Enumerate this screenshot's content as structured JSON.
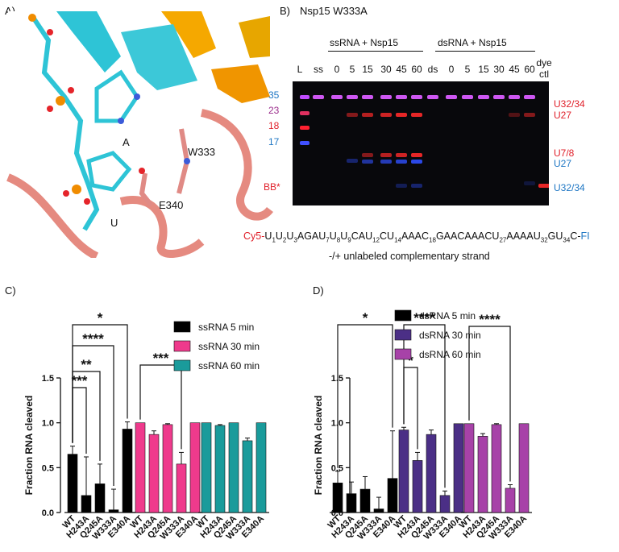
{
  "panels": {
    "a": "A)",
    "b": "B)",
    "b_title": "Nsp15 W333A",
    "c": "C)",
    "d": "D)"
  },
  "structure": {
    "labels": [
      "A",
      "W333",
      "E340",
      "U"
    ]
  },
  "gel": {
    "group_ss": "ssRNA + Nsp15",
    "group_ds": "dsRNA + Nsp15",
    "lanes": [
      "L",
      "ss",
      "0",
      "5",
      "15",
      "30",
      "45",
      "60",
      "ds",
      "0",
      "5",
      "15",
      "30",
      "45",
      "60",
      "dye ctl"
    ],
    "left_markers": [
      {
        "text": "35",
        "color": "#1f77c4"
      },
      {
        "text": "23",
        "color": "#9b2d8c"
      },
      {
        "text": "18",
        "color": "#e0202a"
      },
      {
        "text": "17",
        "color": "#1f77c4"
      },
      {
        "text": "BB*",
        "color": "#e0202a"
      }
    ],
    "right_markers": [
      {
        "text": "U32/34",
        "color": "#e0202a"
      },
      {
        "text": "U27",
        "color": "#e0202a"
      },
      {
        "text": "U7/8",
        "color": "#e0202a"
      },
      {
        "text": "U27",
        "color": "#1f77c4"
      },
      {
        "text": "U32/34",
        "color": "#1f77c4"
      }
    ],
    "note": "-/+ unlabeled complementary strand"
  },
  "sequence": {
    "prefix": "Cy5-",
    "segments": [
      {
        "t": "U",
        "s": "1"
      },
      {
        "t": "U",
        "s": "2"
      },
      {
        "t": "U",
        "s": "3"
      },
      {
        "t": "AGAU",
        "s": "7"
      },
      {
        "t": "U",
        "s": "8"
      },
      {
        "t": "U",
        "s": "9"
      },
      {
        "t": "CAU",
        "s": "12"
      },
      {
        "t": "CU",
        "s": "14"
      },
      {
        "t": "AAAC",
        "s": "18"
      },
      {
        "t": "GAACAAACU",
        "s": "27"
      },
      {
        "t": "AAAAU",
        "s": "32"
      },
      {
        "t": "GU",
        "s": "34"
      },
      {
        "t": "C-",
        "s": ""
      }
    ],
    "suffix": "FI",
    "prefix_color": "#e0202a",
    "suffix_color": "#1f77c4"
  },
  "chart_data": [
    {
      "type": "bar",
      "ylabel": "Fraction RNA cleaved",
      "ylim": [
        0,
        1.5
      ],
      "yticks": [
        "0.0",
        "0.5",
        "1.0",
        "1.5"
      ],
      "categories": [
        "WT",
        "H243A",
        "Q245A",
        "W333A",
        "E340A"
      ],
      "series": [
        {
          "name": "ssRNA 5 min",
          "color": "#000000",
          "values": [
            0.65,
            0.19,
            0.32,
            0.03,
            0.93
          ],
          "errors": [
            0.09,
            0.43,
            0.22,
            0.23,
            0.08
          ]
        },
        {
          "name": "ssRNA 30 min",
          "color": "#ef3a8c",
          "values": [
            1.0,
            0.87,
            0.98,
            0.54,
            1.0
          ],
          "errors": [
            0.0,
            0.04,
            0.01,
            0.13,
            0.0
          ]
        },
        {
          "name": "ssRNA 60 min",
          "color": "#1a9b9b",
          "values": [
            1.0,
            0.97,
            1.0,
            0.8,
            1.0
          ],
          "errors": [
            0.0,
            0.01,
            0.0,
            0.03,
            0.0
          ]
        }
      ],
      "legend": "top-right",
      "significance": [
        {
          "label": "***",
          "from": [
            0,
            0
          ],
          "to": [
            0,
            1
          ]
        },
        {
          "label": "**",
          "from": [
            0,
            0
          ],
          "to": [
            0,
            2
          ]
        },
        {
          "label": "****",
          "from": [
            0,
            0
          ],
          "to": [
            0,
            3
          ]
        },
        {
          "label": "*",
          "from": [
            0,
            0
          ],
          "to": [
            0,
            4
          ]
        },
        {
          "label": "***",
          "from": [
            1,
            0
          ],
          "to": [
            1,
            3
          ]
        }
      ]
    },
    {
      "type": "bar",
      "ylabel": "Fraction RNA cleaved",
      "ylim": [
        0,
        1.5
      ],
      "yticks": [
        "0.0",
        "0.5",
        "1.0",
        "1.5"
      ],
      "categories": [
        "WT",
        "H243A",
        "Q245A",
        "W333A",
        "E340A"
      ],
      "series": [
        {
          "name": "dsRNA 5 min",
          "color": "#000000",
          "values": [
            0.33,
            0.21,
            0.26,
            0.04,
            0.38
          ],
          "errors": [
            0.13,
            0.13,
            0.14,
            0.13,
            0.53
          ]
        },
        {
          "name": "dsRNA 30 min",
          "color": "#4b2f86",
          "values": [
            0.92,
            0.58,
            0.87,
            0.19,
            0.99
          ],
          "errors": [
            0.03,
            0.09,
            0.05,
            0.05,
            0.0
          ]
        },
        {
          "name": "dsRNA 60 min",
          "color": "#a742a8",
          "values": [
            0.99,
            0.85,
            0.98,
            0.27,
            0.99
          ],
          "errors": [
            0.0,
            0.03,
            0.01,
            0.04,
            0.0
          ]
        }
      ],
      "legend": "top-right",
      "significance": [
        {
          "label": "*",
          "from": [
            0,
            0
          ],
          "to": [
            0,
            4
          ]
        },
        {
          "label": "*",
          "from": [
            1,
            0
          ],
          "to": [
            1,
            1
          ]
        },
        {
          "label": "****",
          "from": [
            1,
            0
          ],
          "to": [
            1,
            3
          ]
        },
        {
          "label": "****",
          "from": [
            2,
            0
          ],
          "to": [
            2,
            3
          ]
        }
      ]
    }
  ]
}
